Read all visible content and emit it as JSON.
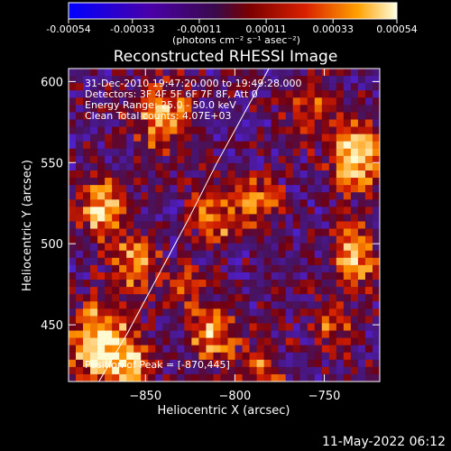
{
  "chart_data": {
    "type": "heatmap",
    "title": "Reconstructed RHESSI Image",
    "xlabel": "Heliocentric X (arcsec)",
    "ylabel": "Heliocentric Y (arcsec)",
    "xlim": [
      -893,
      -719
    ],
    "ylim": [
      415,
      608
    ],
    "xticks": [
      -850,
      -800,
      -750
    ],
    "yticks": [
      450,
      500,
      550,
      600
    ],
    "colorbar": {
      "ticks": [
        "-0.00054",
        "-0.00033",
        "-0.00011",
        "0.00011",
        "0.00033",
        "0.00054"
      ],
      "min": -0.00054,
      "max": 0.00054,
      "unit_label": "(photons cm⁻² s⁻¹ asec⁻²)"
    },
    "annotations": [
      "31-Dec-2010 19:47:20.000 to 19:49:28.000",
      "Detectors: 3F 4F 5F 6F 7F 8F, Att 0",
      "Energy Range: 25.0 - 50.0 keV",
      "Clean     Total counts: 4.07E+03"
    ],
    "peak_label": "Position of Peak = [-870,445]",
    "limb_curve": [
      [
        -876,
        415
      ],
      [
        -860,
        445
      ],
      [
        -843,
        480
      ],
      [
        -826,
        515
      ],
      [
        -810,
        550
      ],
      [
        -795,
        580
      ],
      [
        -781,
        608
      ]
    ]
  },
  "footer": {
    "date": "11-May-2022 06:12"
  }
}
